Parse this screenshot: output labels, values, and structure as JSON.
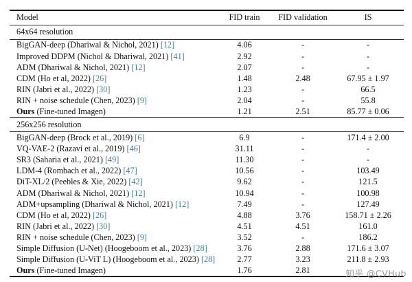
{
  "colors": {
    "citation": "#3a7fa0",
    "rule": "#2b2b2b",
    "text": "#111111",
    "watermark": "#9a9a9a"
  },
  "watermark": {
    "text": "知乎 @CVHub"
  },
  "table": {
    "headers": [
      "Model",
      "FID train",
      "FID validation",
      "IS"
    ],
    "sections": [
      {
        "label": "64x64 resolution",
        "rows": [
          {
            "model_bold": "",
            "model": "BigGAN-deep (Dhariwal & Nichol, 2021) ",
            "cite": "[12]",
            "fid_train": "4.06",
            "fid_validation": "-",
            "is": "-"
          },
          {
            "model_bold": "",
            "model": "Improved DDPM (Nichol & Dhariwal, 2021) ",
            "cite": "[41]",
            "fid_train": "2.92",
            "fid_validation": "-",
            "is": "-"
          },
          {
            "model_bold": "",
            "model": "ADM (Dhariwal & Nichol, 2021) ",
            "cite": "[12]",
            "fid_train": "2.07",
            "fid_validation": "-",
            "is": "-"
          },
          {
            "model_bold": "",
            "model": "CDM (Ho et al, 2022) ",
            "cite": "[26]",
            "fid_train": "1.48",
            "fid_validation": "2.48",
            "is": "67.95 ± 1.97"
          },
          {
            "model_bold": "",
            "model": "RIN (Jabri et al., 2022) ",
            "cite": "[30]",
            "fid_train": "1.23",
            "fid_validation": "-",
            "is": "66.5"
          },
          {
            "model_bold": "",
            "model": "RIN + noise schedule (Chen, 2023) ",
            "cite": "[9]",
            "fid_train": "2.04",
            "fid_validation": "-",
            "is": "55.8"
          },
          {
            "model_bold": "Ours",
            "model": " (Fine-tuned Imagen)",
            "cite": "",
            "fid_train": "1.21",
            "fid_validation": "2.51",
            "is": "85.77 ± 0.06"
          }
        ]
      },
      {
        "label": "256x256 resolution",
        "rows": [
          {
            "model_bold": "",
            "model": "BigGAN-deep (Brock et al., 2019) ",
            "cite": "[6]",
            "fid_train": "6.9",
            "fid_validation": "-",
            "is": "171.4 ± 2.00"
          },
          {
            "model_bold": "",
            "model": "VQ-VAE-2 (Razavi et al., 2019) ",
            "cite": "[46]",
            "fid_train": "31.11",
            "fid_validation": "-",
            "is": "-"
          },
          {
            "model_bold": "",
            "model": "SR3 (Saharia et al., 2021) ",
            "cite": "[49]",
            "fid_train": "11.30",
            "fid_validation": "-",
            "is": "-"
          },
          {
            "model_bold": "",
            "model": "LDM-4 (Rombach et al., 2022) ",
            "cite": "[47]",
            "fid_train": "10.56",
            "fid_validation": "-",
            "is": "103.49"
          },
          {
            "model_bold": "",
            "model": "DiT-XL/2 (Peebles & Xie, 2022) ",
            "cite": "[42]",
            "fid_train": "9.62",
            "fid_validation": "-",
            "is": "121.5"
          },
          {
            "model_bold": "",
            "model": "ADM (Dhariwal & Nichol, 2021) ",
            "cite": "[12]",
            "fid_train": "10.94",
            "fid_validation": "-",
            "is": "100.98"
          },
          {
            "model_bold": "",
            "model": "ADM+upsampling (Dhariwal & Nichol, 2021) ",
            "cite": "[12]",
            "fid_train": "7.49",
            "fid_validation": "-",
            "is": "127.49"
          },
          {
            "model_bold": "",
            "model": "CDM (Ho et al, 2022) ",
            "cite": "[26]",
            "fid_train": "4.88",
            "fid_validation": "3.76",
            "is": "158.71 ± 2.26"
          },
          {
            "model_bold": "",
            "model": "RIN (Jabri et al., 2022) ",
            "cite": "[30]",
            "fid_train": "4.51",
            "fid_validation": "4.51",
            "is": "161.0"
          },
          {
            "model_bold": "",
            "model": "RIN + noise schedule (Chen, 2023) ",
            "cite": "[9]",
            "fid_train": "3.52",
            "fid_validation": "-",
            "is": "186.2"
          },
          {
            "model_bold": "",
            "model": "Simple Diffusion (U-Net) (Hoogeboom et al., 2023) ",
            "cite": "[28]",
            "fid_train": "3.76",
            "fid_validation": "2.88",
            "is": "171.6 ± 3.07"
          },
          {
            "model_bold": "",
            "model": "Simple Diffusion (U-ViT L) (Hoogeboom et al., 2023) ",
            "cite": "[28]",
            "fid_train": "2.77",
            "fid_validation": "3.23",
            "is": "211.8 ± 2.93"
          },
          {
            "model_bold": "Ours",
            "model": " (Fine-tuned Imagen)",
            "cite": "",
            "fid_train": "1.76",
            "fid_validation": "2.81",
            "is": ""
          }
        ]
      }
    ]
  }
}
